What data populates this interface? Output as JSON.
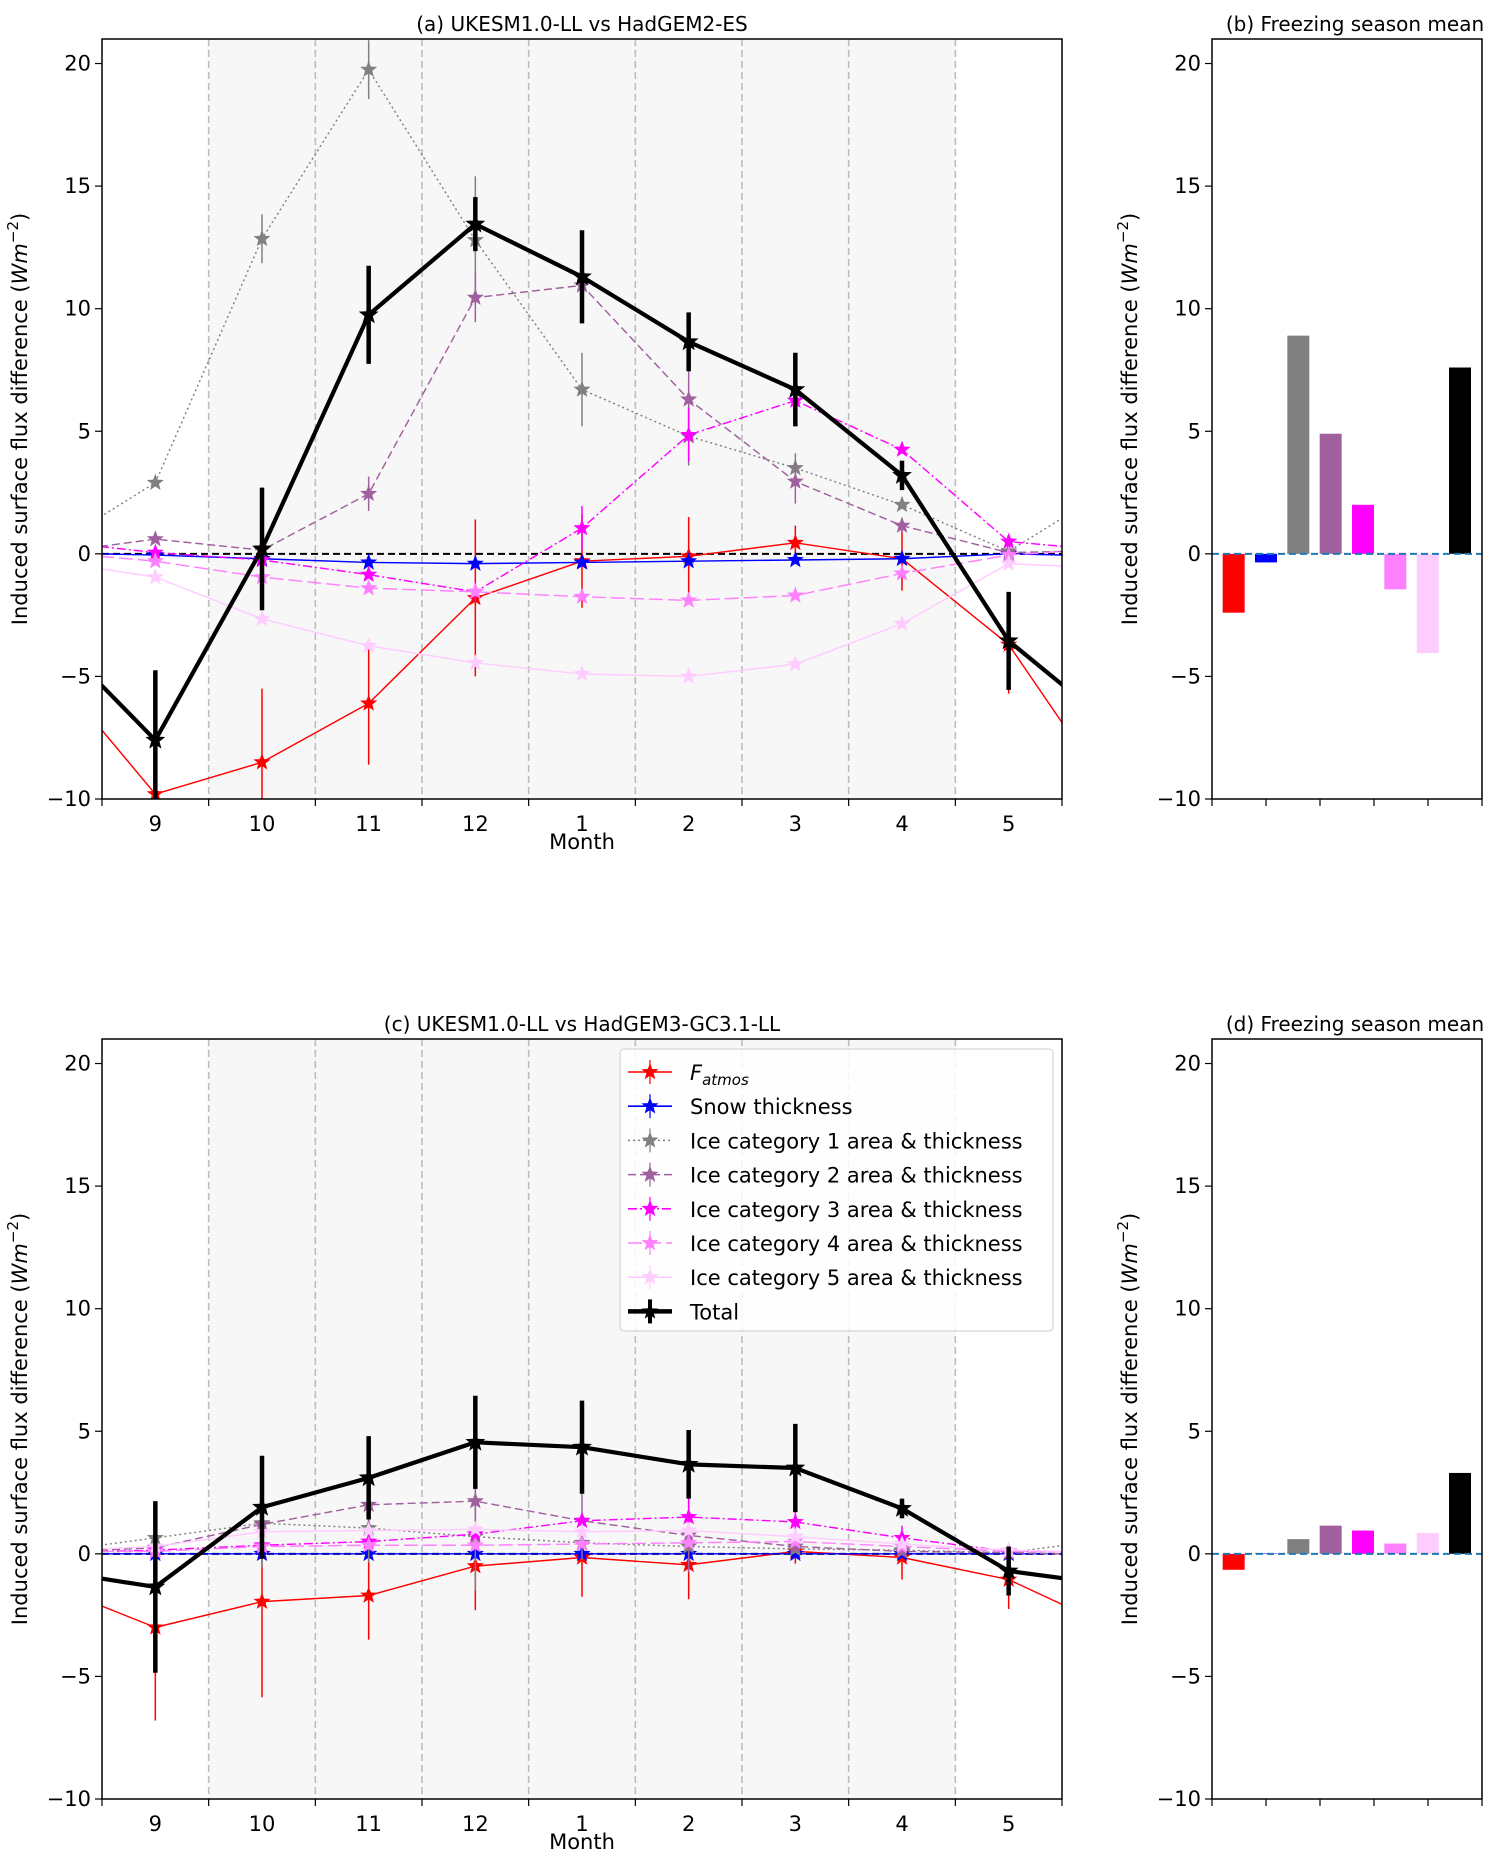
{
  "chart_data": [
    {
      "id": "a",
      "type": "line",
      "title": "(a) UKESM1.0-LL vs HadGEM2-ES",
      "xlabel": "Month",
      "ylabel": "Induced surface flux difference (Wm⁻²)",
      "categories": [
        "9",
        "10",
        "11",
        "12",
        "1",
        "2",
        "3",
        "4",
        "5"
      ],
      "ylim": [
        -10,
        21
      ],
      "yticks": [
        -10,
        -5,
        0,
        5,
        10,
        15,
        20
      ],
      "shaded_months": [
        "10",
        "11",
        "12",
        "1",
        "2",
        "3",
        "4"
      ],
      "zero_line": "dashed-black",
      "edge_extrapolation": {
        "left": [
          -7.1,
          0.0,
          1.5,
          0.3,
          0.3,
          -0.1,
          -0.6,
          -5.3
        ],
        "right": [
          -7.0,
          -0.05,
          1.5,
          0.1,
          0.3,
          0.1,
          -0.5,
          -5.4
        ]
      },
      "series": [
        {
          "name": "Fatmos",
          "values": [
            -9.8,
            -8.5,
            -6.1,
            -1.8,
            -0.3,
            -0.1,
            0.45,
            -0.2,
            -3.7
          ],
          "err": [
            2.5,
            3.0,
            2.5,
            3.2,
            1.9,
            1.6,
            0.7,
            1.3,
            2.0
          ]
        },
        {
          "name": "Snow thickness",
          "values": [
            -0.05,
            -0.2,
            -0.35,
            -0.4,
            -0.35,
            -0.3,
            -0.25,
            -0.2,
            0.0
          ],
          "err": [
            0,
            0,
            0,
            0,
            0,
            0,
            0,
            0,
            0
          ]
        },
        {
          "name": "Ice category 1 area & thickness",
          "values": [
            2.9,
            12.85,
            19.75,
            12.8,
            6.7,
            4.8,
            3.5,
            2.0,
            0.1
          ],
          "err": [
            0,
            1.0,
            1.2,
            2.6,
            1.5,
            1.2,
            0.6,
            0,
            0
          ]
        },
        {
          "name": "Ice category 2 area & thickness",
          "values": [
            0.6,
            0.15,
            2.45,
            10.45,
            10.95,
            6.3,
            2.95,
            1.15,
            0.05
          ],
          "err": [
            0,
            0,
            0.7,
            1.0,
            1.4,
            1.2,
            0.9,
            0.3,
            0
          ]
        },
        {
          "name": "Ice category 3 area & thickness",
          "values": [
            0.05,
            -0.25,
            -0.85,
            -1.55,
            1.05,
            4.85,
            6.25,
            4.25,
            0.5
          ],
          "err": [
            0,
            0,
            0,
            0.4,
            0.9,
            1.1,
            0,
            0,
            0
          ]
        },
        {
          "name": "Ice category 4 area & thickness",
          "values": [
            -0.3,
            -0.95,
            -1.4,
            -1.55,
            -1.75,
            -1.9,
            -1.7,
            -0.8,
            -0.05
          ],
          "err": [
            0,
            0,
            0,
            0,
            0,
            0,
            0,
            0,
            0
          ]
        },
        {
          "name": "Ice category 5 area & thickness",
          "values": [
            -0.95,
            -2.65,
            -3.75,
            -4.45,
            -4.9,
            -5.0,
            -4.5,
            -2.85,
            -0.4
          ],
          "err": [
            0,
            0,
            0,
            0,
            0,
            0,
            0,
            0,
            0
          ]
        },
        {
          "name": "Total",
          "values": [
            -7.6,
            0.2,
            9.75,
            13.45,
            11.3,
            8.65,
            6.7,
            3.2,
            -3.55
          ],
          "err": [
            2.85,
            2.5,
            2.0,
            1.1,
            1.9,
            1.2,
            1.5,
            0.6,
            2.0
          ]
        }
      ]
    },
    {
      "id": "b",
      "type": "bar",
      "title": "(b) Freezing season mean",
      "ylabel": "Induced surface flux difference (Wm⁻²)",
      "categories": [
        "Fatmos",
        "Snow thickness",
        "Ice category 1 area & thickness",
        "Ice category 2 area & thickness",
        "Ice category 3 area & thickness",
        "Ice category 4 area & thickness",
        "Ice category 5 area & thickness",
        "Total"
      ],
      "values": [
        -2.4,
        -0.35,
        8.9,
        4.9,
        2.0,
        -1.45,
        -4.05,
        7.6
      ],
      "ylim": [
        -10,
        21
      ],
      "yticks": [
        -10,
        -5,
        0,
        5,
        10,
        15,
        20
      ],
      "zero_line": "dashed-blue"
    },
    {
      "id": "c",
      "type": "line",
      "title": "(c) UKESM1.0-LL vs HadGEM3-GC3.1-LL",
      "xlabel": "Month",
      "ylabel": "Induced surface flux difference (Wm⁻²)",
      "categories": [
        "9",
        "10",
        "11",
        "12",
        "1",
        "2",
        "3",
        "4",
        "5"
      ],
      "ylim": [
        -10,
        21
      ],
      "yticks": [
        -10,
        -5,
        0,
        5,
        10,
        15,
        20
      ],
      "shaded_months": [
        "10",
        "11",
        "12",
        "1",
        "2",
        "3",
        "4"
      ],
      "zero_line": "dashed-black",
      "legend_position": "top-right",
      "edge_extrapolation": {
        "left": [
          -2.1,
          0.0,
          0.35,
          0.15,
          0.1,
          0.1,
          0.2,
          -1.0
        ],
        "right": [
          -2.1,
          0.0,
          0.35,
          0.0,
          0.1,
          0.1,
          0.1,
          -1.0
        ]
      },
      "series": [
        {
          "name": "Fatmos",
          "values": [
            -3.0,
            -1.95,
            -1.7,
            -0.5,
            -0.15,
            -0.45,
            0.1,
            -0.15,
            -1.05
          ],
          "err": [
            3.8,
            3.9,
            1.8,
            1.8,
            1.6,
            1.4,
            0.5,
            0.9,
            1.2
          ]
        },
        {
          "name": "Snow thickness",
          "values": [
            0.0,
            0.0,
            0.0,
            0.0,
            0.0,
            0.0,
            0.0,
            0.0,
            0.0
          ],
          "err": [
            0,
            0,
            0,
            0,
            0,
            0,
            0,
            0,
            0
          ]
        },
        {
          "name": "Ice category 1 area & thickness",
          "values": [
            0.65,
            1.25,
            1.05,
            0.7,
            0.45,
            0.3,
            0.2,
            0.15,
            0.05
          ],
          "err": [
            0,
            1.8,
            1.4,
            2.2,
            0,
            0,
            0,
            0,
            0
          ]
        },
        {
          "name": "Ice category 2 area & thickness",
          "values": [
            0.25,
            1.2,
            2.0,
            2.15,
            1.35,
            0.75,
            0.3,
            0.1,
            0.05
          ],
          "err": [
            0,
            0,
            1.7,
            1.8,
            1.6,
            1.5,
            0,
            0,
            0
          ]
        },
        {
          "name": "Ice category 3 area & thickness",
          "values": [
            0.15,
            0.35,
            0.5,
            0.8,
            1.35,
            1.5,
            1.3,
            0.65,
            0.1
          ],
          "err": [
            0,
            0,
            0,
            0,
            0,
            0.8,
            0.9,
            0.5,
            0
          ]
        },
        {
          "name": "Ice category 4 area & thickness",
          "values": [
            0.1,
            0.3,
            0.35,
            0.35,
            0.4,
            0.45,
            0.5,
            0.3,
            0.1
          ],
          "err": [
            0,
            0,
            0,
            0,
            0,
            0,
            0,
            0,
            0
          ]
        },
        {
          "name": "Ice category 5 area & thickness",
          "values": [
            0.3,
            0.9,
            0.95,
            1.0,
            0.9,
            0.95,
            0.7,
            0.4,
            0.15
          ],
          "err": [
            0,
            0,
            0,
            0,
            0,
            0,
            0,
            0,
            0
          ]
        },
        {
          "name": "Total",
          "values": [
            -1.35,
            1.9,
            3.1,
            4.55,
            4.35,
            3.65,
            3.5,
            1.85,
            -0.7
          ],
          "err": [
            3.5,
            2.1,
            1.7,
            1.9,
            1.9,
            1.4,
            1.8,
            0.4,
            1.0
          ]
        }
      ]
    },
    {
      "id": "d",
      "type": "bar",
      "title": "(d) Freezing season mean",
      "ylabel": "Induced surface flux difference (Wm⁻²)",
      "categories": [
        "Fatmos",
        "Snow thickness",
        "Ice category 1 area & thickness",
        "Ice category 2 area & thickness",
        "Ice category 3 area & thickness",
        "Ice category 4 area & thickness",
        "Ice category 5 area & thickness",
        "Total"
      ],
      "values": [
        -0.65,
        0.02,
        0.6,
        1.15,
        0.95,
        0.42,
        0.85,
        3.3
      ],
      "ylim": [
        -10,
        21
      ],
      "yticks": [
        -10,
        -5,
        0,
        5,
        10,
        15,
        20
      ],
      "zero_line": "dashed-blue"
    }
  ],
  "legend": {
    "entries": [
      {
        "label_main": "F",
        "label_sub": "atmos",
        "label": "",
        "color": "#ff0000",
        "style": "solid",
        "width": 1.2
      },
      {
        "label": "Snow thickness",
        "color": "#0000ff",
        "style": "solid",
        "width": 1.2
      },
      {
        "label": "Ice category 1 area & thickness",
        "color": "#808080",
        "style": "dotted",
        "width": 1.2
      },
      {
        "label": "Ice category 2 area & thickness",
        "color": "#a0609e",
        "style": "dashed",
        "width": 1.2
      },
      {
        "label": "Ice category 3 area & thickness",
        "color": "#ff00ff",
        "style": "dashdot",
        "width": 1.2
      },
      {
        "label": "Ice category 4 area & thickness",
        "color": "#ff80ff",
        "style": "longdash",
        "width": 1.2
      },
      {
        "label": "Ice category 5 area & thickness",
        "color": "#ffccff",
        "style": "solid",
        "width": 1.2
      },
      {
        "label": "Total",
        "color": "#000000",
        "style": "solid",
        "width": 3.5
      }
    ]
  },
  "colors": {
    "shade": "#f7f7f7",
    "grid_dashed": "#bdbdbd",
    "zero_bar_line": "#1f77b4"
  }
}
